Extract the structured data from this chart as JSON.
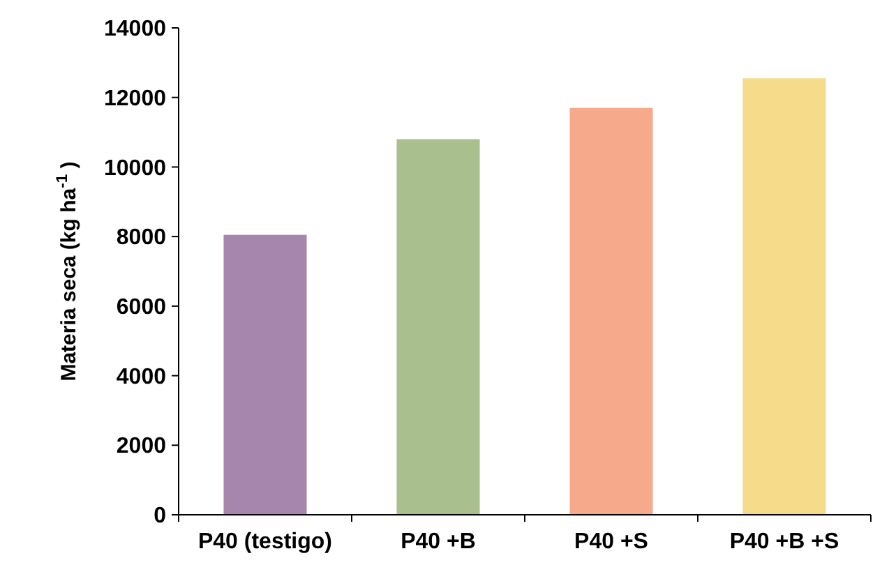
{
  "chart_data": {
    "type": "bar",
    "ylabel": "Materia seca (kg ha$^{-1}$ )",
    "categories": [
      "P40 (testigo)",
      "P40 +B",
      "P40 +S",
      "P40 +B +S"
    ],
    "values": [
      8050,
      10800,
      11700,
      12550
    ],
    "colors": [
      "#a686ad",
      "#a9bf8e",
      "#f7a98c",
      "#f6dc8a"
    ],
    "ylim": [
      0,
      14000
    ],
    "yticks": [
      0,
      2000,
      4000,
      6000,
      8000,
      10000,
      12000,
      14000
    ],
    "grid": false
  }
}
